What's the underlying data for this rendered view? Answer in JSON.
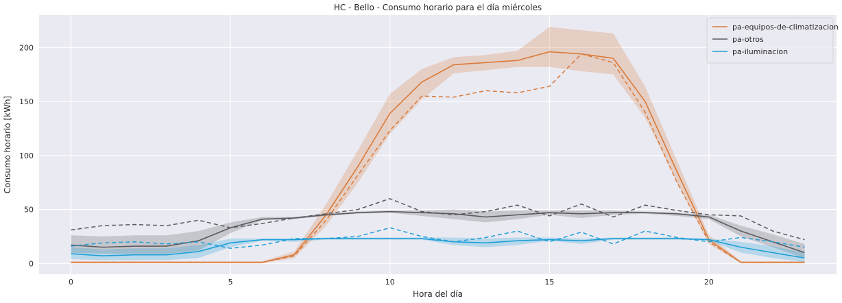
{
  "chart_data": {
    "type": "line",
    "title": "HC - Bello - Consumo horario para el día miércoles",
    "xlabel": "Hora del día",
    "ylabel": "Consumo horario [kWh]",
    "xlim": [
      -1,
      24
    ],
    "ylim": [
      -10,
      230
    ],
    "xticks": [
      0,
      5,
      10,
      15,
      20
    ],
    "yticks": [
      0,
      50,
      100,
      150,
      200
    ],
    "grid": true,
    "legend_position": "top-right",
    "x": [
      0,
      1,
      2,
      3,
      4,
      5,
      6,
      7,
      8,
      9,
      10,
      11,
      12,
      13,
      14,
      15,
      16,
      17,
      18,
      19,
      20,
      21,
      22,
      23
    ],
    "series": [
      {
        "name": "pa-equipos-de-climatizacion",
        "color": "#d97a3a",
        "mean": [
          1,
          1,
          1,
          1,
          1,
          1,
          1,
          8,
          45,
          90,
          139,
          168,
          184,
          186,
          188,
          196,
          194,
          190,
          150,
          85,
          22,
          1,
          1,
          1
        ],
        "lower": [
          0,
          0,
          0,
          0,
          0,
          0,
          0,
          5,
          35,
          75,
          120,
          152,
          176,
          179,
          182,
          182,
          178,
          175,
          135,
          75,
          18,
          0,
          0,
          0
        ],
        "upper": [
          2,
          2,
          2,
          2,
          2,
          2,
          2,
          11,
          55,
          105,
          157,
          180,
          191,
          193,
          197,
          219,
          216,
          213,
          164,
          95,
          26,
          2,
          2,
          2
        ],
        "dashed": [
          1,
          1,
          1,
          1,
          1,
          1,
          1,
          7,
          40,
          82,
          123,
          155,
          154,
          160,
          158,
          164,
          194,
          186,
          140,
          75,
          20,
          1,
          1,
          1
        ]
      },
      {
        "name": "pa-otros",
        "color": "#5a5a5f",
        "mean": [
          17,
          15,
          16,
          16,
          21,
          33,
          41,
          42,
          45,
          47,
          48,
          47,
          46,
          43,
          45,
          47,
          46,
          47,
          47,
          46,
          43,
          30,
          20,
          10
        ],
        "lower": [
          10,
          9,
          9,
          9,
          12,
          28,
          40,
          41,
          44,
          46,
          47,
          44,
          41,
          38,
          41,
          45,
          42,
          45,
          46,
          44,
          41,
          25,
          15,
          5
        ],
        "upper": [
          26,
          25,
          26,
          26,
          30,
          38,
          43,
          43,
          46,
          48,
          49,
          49,
          50,
          48,
          49,
          49,
          49,
          49,
          48,
          47,
          45,
          35,
          27,
          18
        ],
        "dashed": [
          31,
          35,
          36,
          35,
          40,
          33,
          37,
          42,
          46,
          50,
          60,
          48,
          45,
          48,
          54,
          44,
          55,
          43,
          54,
          49,
          45,
          44,
          30,
          22
        ]
      },
      {
        "name": "pa-iluminacion",
        "color": "#1f9fd6",
        "mean": [
          9,
          7,
          8,
          8,
          11,
          19,
          22,
          22,
          23,
          23,
          23,
          23,
          20,
          19,
          21,
          22,
          21,
          23,
          23,
          23,
          22,
          15,
          10,
          5
        ],
        "lower": [
          4,
          3,
          3,
          3,
          5,
          15,
          21,
          20,
          22,
          22,
          22,
          22,
          17,
          15,
          17,
          21,
          18,
          22,
          22,
          22,
          21,
          10,
          5,
          1
        ],
        "upper": [
          15,
          13,
          14,
          14,
          17,
          23,
          23,
          23,
          24,
          24,
          24,
          24,
          24,
          23,
          24,
          24,
          23,
          24,
          24,
          24,
          23,
          20,
          16,
          10
        ],
        "dashed": [
          16,
          19,
          20,
          18,
          20,
          14,
          17,
          23,
          23,
          25,
          33,
          25,
          20,
          24,
          30,
          20,
          29,
          18,
          30,
          24,
          20,
          24,
          20,
          15
        ]
      }
    ]
  }
}
